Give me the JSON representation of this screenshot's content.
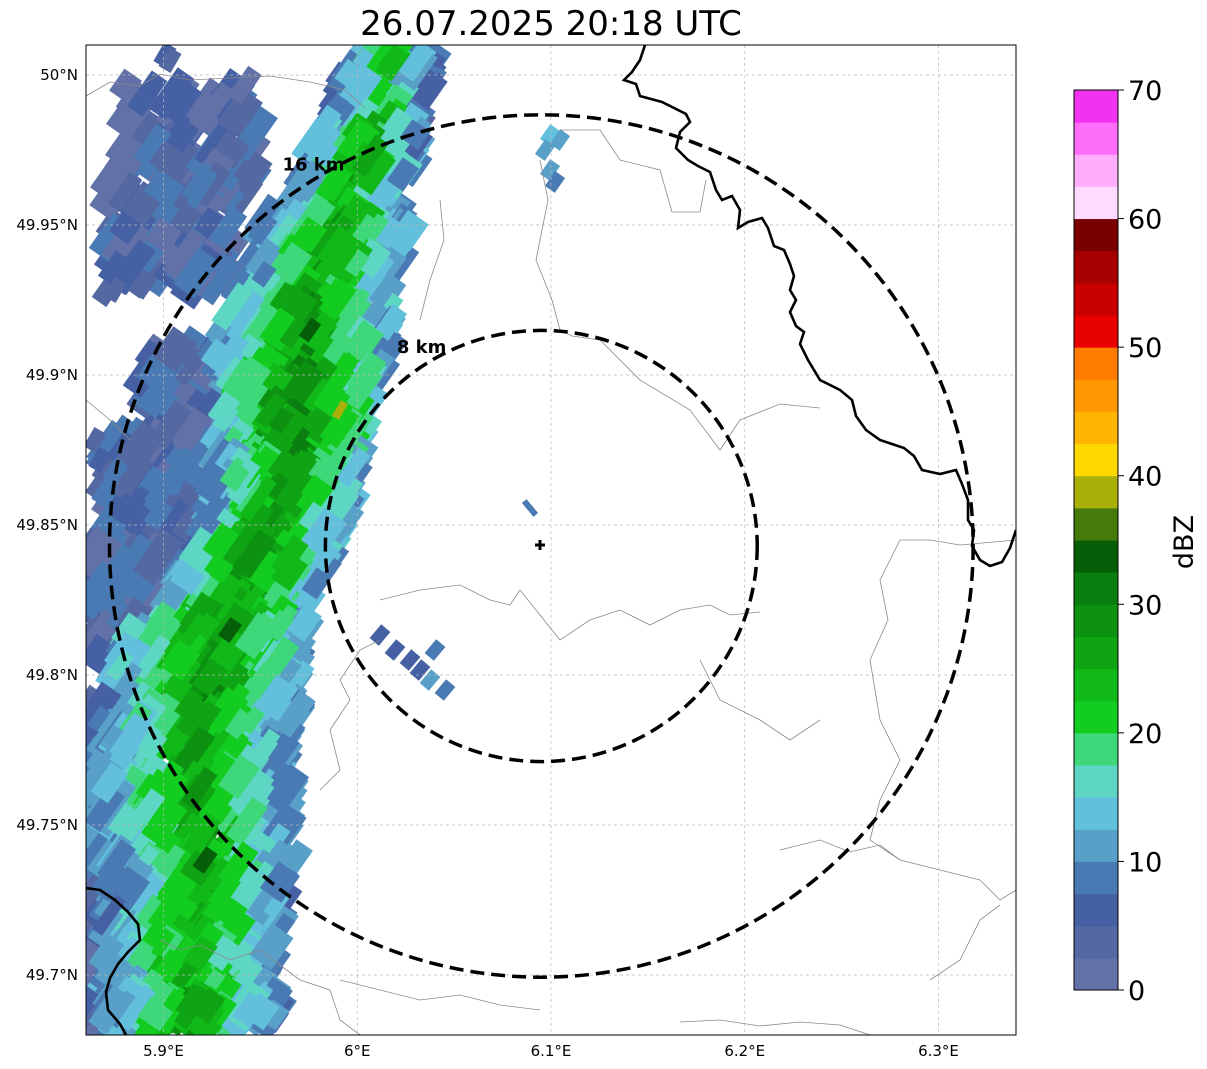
{
  "title": "26.07.2025 20:18 UTC",
  "map": {
    "lon_range": [
      5.86,
      6.34
    ],
    "lat_range": [
      49.68,
      50.01
    ],
    "radar_center": {
      "lon": 6.095,
      "lat": 49.843
    },
    "lat_ticks": [
      {
        "value": 50.0,
        "label": "50°N"
      },
      {
        "value": 49.95,
        "label": "49.95°N"
      },
      {
        "value": 49.9,
        "label": "49.9°N"
      },
      {
        "value": 49.85,
        "label": "49.85°N"
      },
      {
        "value": 49.8,
        "label": "49.8°N"
      },
      {
        "value": 49.75,
        "label": "49.75°N"
      },
      {
        "value": 49.7,
        "label": "49.7°N"
      }
    ],
    "lon_ticks": [
      {
        "value": 5.9,
        "label": "5.9°E"
      },
      {
        "value": 6.0,
        "label": "6°E"
      },
      {
        "value": 6.1,
        "label": "6.1°E"
      },
      {
        "value": 6.2,
        "label": "6.2°E"
      },
      {
        "value": 6.3,
        "label": "6.3°E"
      }
    ],
    "range_rings": [
      {
        "radius_km": 8,
        "label": "8 km"
      },
      {
        "radius_km": 16,
        "label": "16 km"
      }
    ]
  },
  "colorbar": {
    "label": "dBZ",
    "min": 0,
    "max": 70,
    "step": 2.5,
    "ticks": [
      {
        "value": 0,
        "label": "0"
      },
      {
        "value": 10,
        "label": "10"
      },
      {
        "value": 20,
        "label": "20"
      },
      {
        "value": 30,
        "label": "30"
      },
      {
        "value": 40,
        "label": "40"
      },
      {
        "value": 50,
        "label": "50"
      },
      {
        "value": 60,
        "label": "60"
      },
      {
        "value": 70,
        "label": "70"
      }
    ],
    "colors": [
      "#6272a8",
      "#5468a2",
      "#4660a4",
      "#4a7ab4",
      "#58a0c8",
      "#62c0dc",
      "#5ed6c4",
      "#3ed87a",
      "#12cc20",
      "#10b818",
      "#0ea414",
      "#0c9210",
      "#0a7e0e",
      "#065e08",
      "#467a0a",
      "#aab00a",
      "#ffd800",
      "#ffb400",
      "#ff9800",
      "#ff7c00",
      "#e80000",
      "#c80000",
      "#a60000",
      "#7a0000",
      "#ffdcff",
      "#ffaefc",
      "#ff6efa",
      "#f232ee"
    ]
  }
}
